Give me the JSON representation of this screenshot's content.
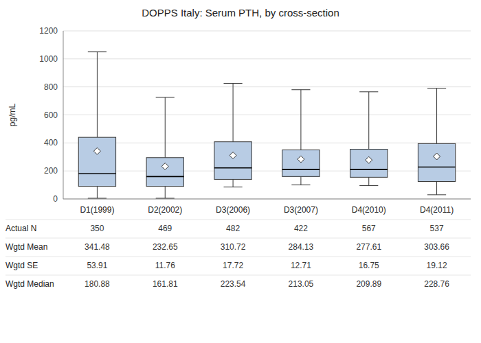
{
  "chart_data": {
    "type": "box",
    "title": "DOPPS Italy: Serum PTH, by cross-section",
    "ylabel": "pg/mL",
    "categories": [
      "D1(1999)",
      "D2(2002)",
      "D3(2006)",
      "D3(2007)",
      "D4(2010)",
      "D4(2011)"
    ],
    "boxes": [
      {
        "whislo": 5,
        "q1": 90,
        "med": 180,
        "q3": 440,
        "whishi": 1050,
        "mean": 341.48
      },
      {
        "whislo": 5,
        "q1": 90,
        "med": 160,
        "q3": 295,
        "whishi": 725,
        "mean": 232.65
      },
      {
        "whislo": 85,
        "q1": 140,
        "med": 222,
        "q3": 408,
        "whishi": 825,
        "mean": 310.72
      },
      {
        "whislo": 100,
        "q1": 160,
        "med": 210,
        "q3": 350,
        "whishi": 780,
        "mean": 284.13
      },
      {
        "whislo": 95,
        "q1": 155,
        "med": 210,
        "q3": 355,
        "whishi": 765,
        "mean": 277.61
      },
      {
        "whislo": 30,
        "q1": 125,
        "med": 228,
        "q3": 395,
        "whishi": 790,
        "mean": 303.66
      }
    ],
    "table": [
      {
        "label": "Actual N",
        "values": [
          350,
          469,
          482,
          422,
          567,
          537
        ]
      },
      {
        "label": "Wgtd Mean",
        "values": [
          341.48,
          232.65,
          310.72,
          284.13,
          277.61,
          303.66
        ]
      },
      {
        "label": "Wgtd SE",
        "values": [
          53.91,
          11.76,
          17.72,
          12.71,
          16.75,
          19.12
        ]
      },
      {
        "label": "Wgtd Median",
        "values": [
          180.88,
          161.81,
          223.54,
          213.05,
          209.89,
          228.76
        ]
      }
    ],
    "ylim": [
      0,
      1200
    ],
    "yticks": [
      0,
      200,
      400,
      600,
      800,
      1000,
      1200
    ],
    "grid": true,
    "color": "#b8cce4"
  }
}
